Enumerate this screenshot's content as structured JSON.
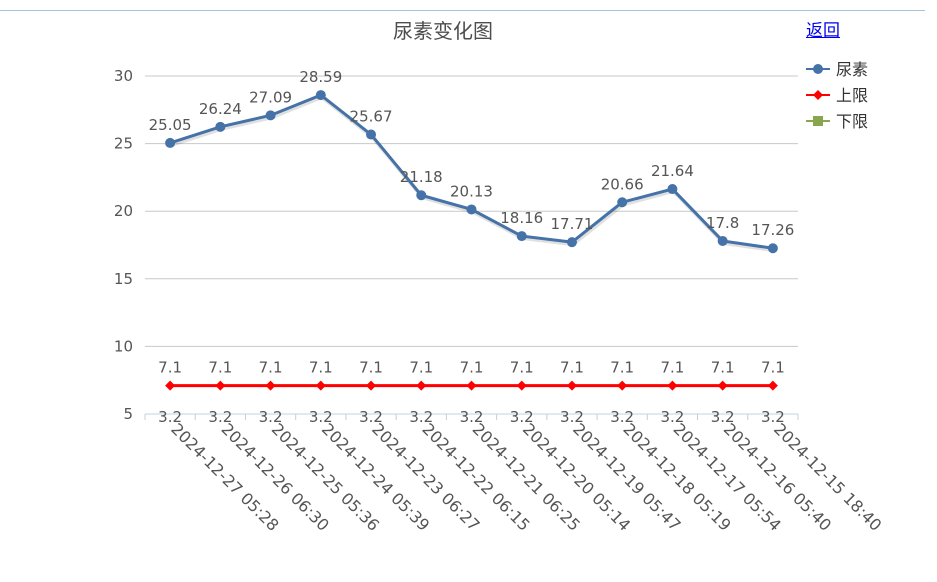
{
  "back_link": "返回",
  "chart_data": {
    "type": "line",
    "title": "尿素变化图",
    "categories": [
      "2024-12-27 05:28",
      "2024-12-26 06:30",
      "2024-12-25 05:36",
      "2024-12-24 05:39",
      "2024-12-23 06:27",
      "2024-12-22 06:15",
      "2024-12-21 06:25",
      "2024-12-20 05:14",
      "2024-12-19 05:47",
      "2024-12-18 05:19",
      "2024-12-17 05:54",
      "2024-12-16 05:40",
      "2024-12-15 18:40"
    ],
    "series": [
      {
        "name": "尿素",
        "color": "#4572a7",
        "marker": "circle",
        "values": [
          25.05,
          26.24,
          27.09,
          28.59,
          25.67,
          21.18,
          20.13,
          18.16,
          17.71,
          20.66,
          21.64,
          17.8,
          17.26
        ]
      },
      {
        "name": "上限",
        "color": "#ff0000",
        "marker": "diamond",
        "values": [
          7.1,
          7.1,
          7.1,
          7.1,
          7.1,
          7.1,
          7.1,
          7.1,
          7.1,
          7.1,
          7.1,
          7.1,
          7.1
        ]
      },
      {
        "name": "下限",
        "color": "#89a54e",
        "marker": "square",
        "values": [
          3.2,
          3.2,
          3.2,
          3.2,
          3.2,
          3.2,
          3.2,
          3.2,
          3.2,
          3.2,
          3.2,
          3.2,
          3.2
        ]
      }
    ],
    "ylim": [
      5,
      30
    ],
    "yticks": [
      5,
      10,
      15,
      20,
      25,
      30
    ],
    "grid": true,
    "legend": "top-right"
  }
}
